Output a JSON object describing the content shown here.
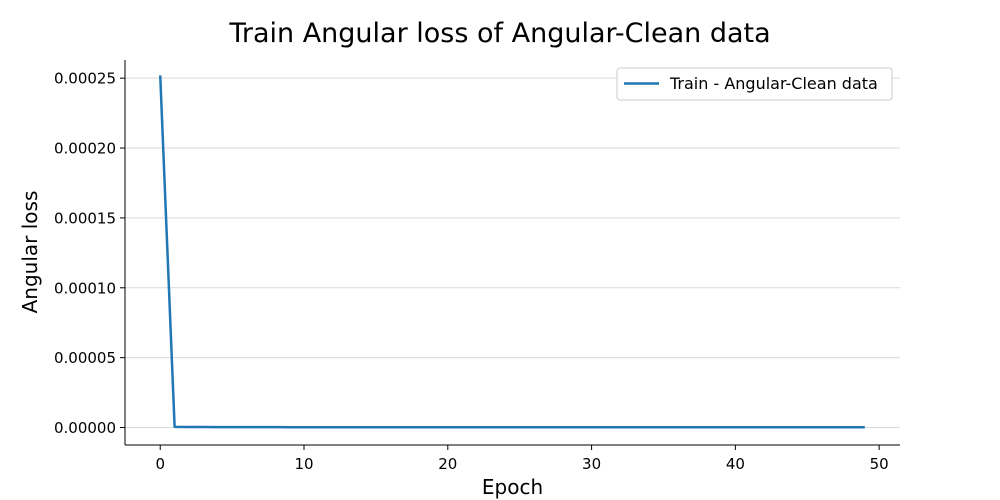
{
  "chart_data": {
    "type": "line",
    "title": "Train Angular loss of Angular-Clean data",
    "xlabel": "Epoch",
    "ylabel": "Angular loss",
    "xlim": [
      -2.45,
      51.45
    ],
    "ylim": [
      -1.25e-05,
      0.000263
    ],
    "x_ticks": [
      0,
      10,
      20,
      30,
      40,
      50
    ],
    "x_tick_labels": [
      "0",
      "10",
      "20",
      "30",
      "40",
      "50"
    ],
    "y_ticks": [
      0,
      5e-05,
      0.0001,
      0.00015,
      0.0002,
      0.00025
    ],
    "y_tick_labels": [
      "0.00000",
      "0.00005",
      "0.00010",
      "0.00015",
      "0.00020",
      "0.00025"
    ],
    "grid": "horizontal",
    "legend_position": "top-right",
    "series": [
      {
        "name": "Train - Angular-Clean data",
        "color": "#1f77b4",
        "x": [
          0,
          1,
          2,
          3,
          4,
          5,
          6,
          7,
          8,
          9,
          10,
          11,
          12,
          13,
          14,
          15,
          16,
          17,
          18,
          19,
          20,
          21,
          22,
          23,
          24,
          25,
          26,
          27,
          28,
          29,
          30,
          31,
          32,
          33,
          34,
          35,
          36,
          37,
          38,
          39,
          40,
          41,
          42,
          43,
          44,
          45,
          46,
          47,
          48,
          49
        ],
        "y": [
          0.000252,
          5e-07,
          4e-07,
          4e-07,
          3e-07,
          3e-07,
          3e-07,
          3e-07,
          3e-07,
          2e-07,
          2e-07,
          2e-07,
          2e-07,
          2e-07,
          2e-07,
          2e-07,
          2e-07,
          2e-07,
          2e-07,
          2e-07,
          2e-07,
          2e-07,
          2e-07,
          2e-07,
          2e-07,
          2e-07,
          2e-07,
          2e-07,
          2e-07,
          2e-07,
          2e-07,
          2e-07,
          2e-07,
          2e-07,
          2e-07,
          2e-07,
          2e-07,
          2e-07,
          2e-07,
          2e-07,
          2e-07,
          2e-07,
          2e-07,
          2e-07,
          2e-07,
          2e-07,
          2e-07,
          2e-07,
          2e-07,
          2e-07
        ]
      }
    ]
  }
}
